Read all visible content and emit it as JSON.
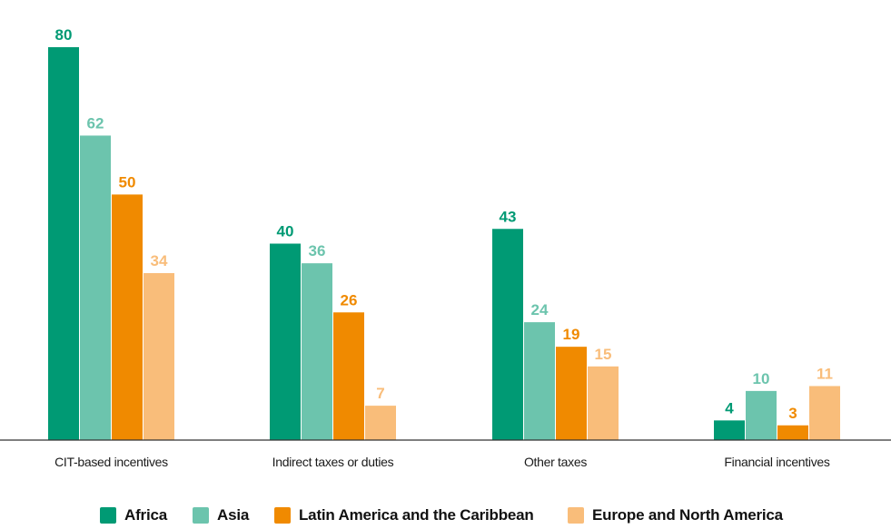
{
  "chart_data": {
    "type": "bar",
    "categories": [
      "CIT-based incentives",
      "Indirect taxes or duties",
      "Other taxes",
      "Financial incentives"
    ],
    "series": [
      {
        "name": "Africa",
        "color": "#009a74",
        "values": [
          80,
          40,
          43,
          4
        ]
      },
      {
        "name": "Asia",
        "color": "#6cc4ad",
        "values": [
          62,
          36,
          24,
          10
        ]
      },
      {
        "name": "Latin America and the Caribbean",
        "color": "#f08a00",
        "values": [
          50,
          26,
          19,
          3
        ]
      },
      {
        "name": "Europe and North America",
        "color": "#f9bd7a",
        "values": [
          34,
          7,
          15,
          11
        ]
      }
    ],
    "ylim": [
      0,
      80
    ],
    "grid": false,
    "legend_position": "bottom",
    "title": "",
    "xlabel": "",
    "ylabel": ""
  }
}
